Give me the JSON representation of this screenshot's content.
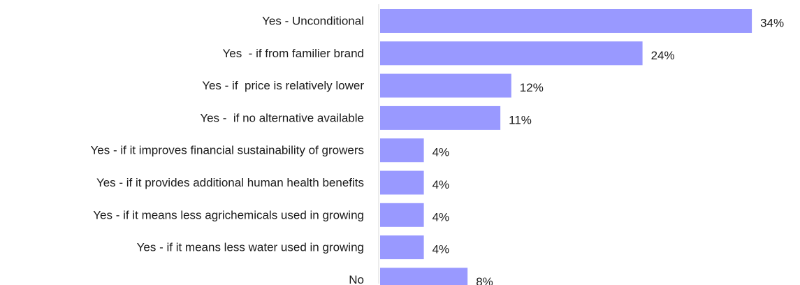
{
  "chart_data": {
    "type": "bar",
    "orientation": "horizontal",
    "categories": [
      "Yes - Unconditional",
      "Yes  - if from familier brand",
      "Yes - if  price is relatively lower",
      "Yes -  if no alternative available",
      "Yes - if it improves financial sustainability of growers",
      "Yes - if it provides additional human health benefits",
      "Yes - if it means less agrichemicals used in growing",
      "Yes - if it means less water used in growing",
      "No"
    ],
    "values": [
      34,
      24,
      12,
      11,
      4,
      4,
      4,
      4,
      8
    ],
    "value_labels": [
      "34%",
      "24%",
      "12%",
      "11%",
      "4%",
      "4%",
      "4%",
      "4%",
      "8%"
    ],
    "unit": "%",
    "xlim": [
      0,
      35
    ],
    "grid": false,
    "legend": "none",
    "colors": {
      "bar": "#9999ff",
      "axis": "#d9d9d9",
      "text": "#1a1a1a"
    }
  }
}
